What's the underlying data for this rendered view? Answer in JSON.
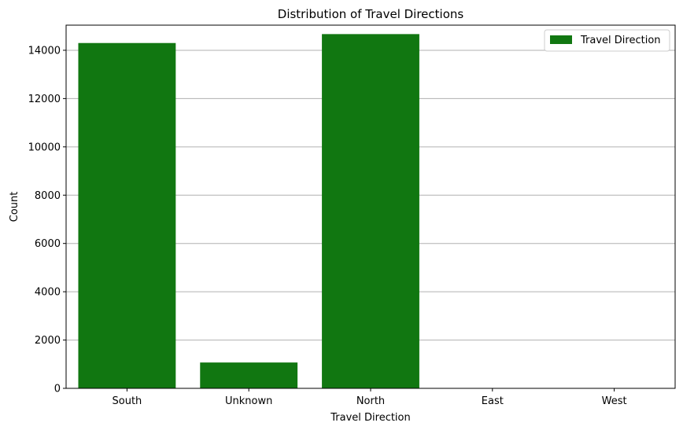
{
  "chart_data": {
    "type": "bar",
    "title": "Distribution of Travel Directions",
    "xlabel": "Travel Direction",
    "ylabel": "Count",
    "categories": [
      "South",
      "Unknown",
      "North",
      "East",
      "West"
    ],
    "series": [
      {
        "name": "Travel Direction",
        "values": [
          14300,
          1070,
          14670,
          0,
          0
        ]
      }
    ],
    "ylim": [
      0,
      15040
    ],
    "yticks": [
      0,
      2000,
      4000,
      6000,
      8000,
      10000,
      12000,
      14000
    ],
    "grid": "y",
    "legend": "top-right",
    "colors": {
      "bar": "#117711",
      "grid": "#b0b0b0",
      "axis": "#000000"
    }
  }
}
